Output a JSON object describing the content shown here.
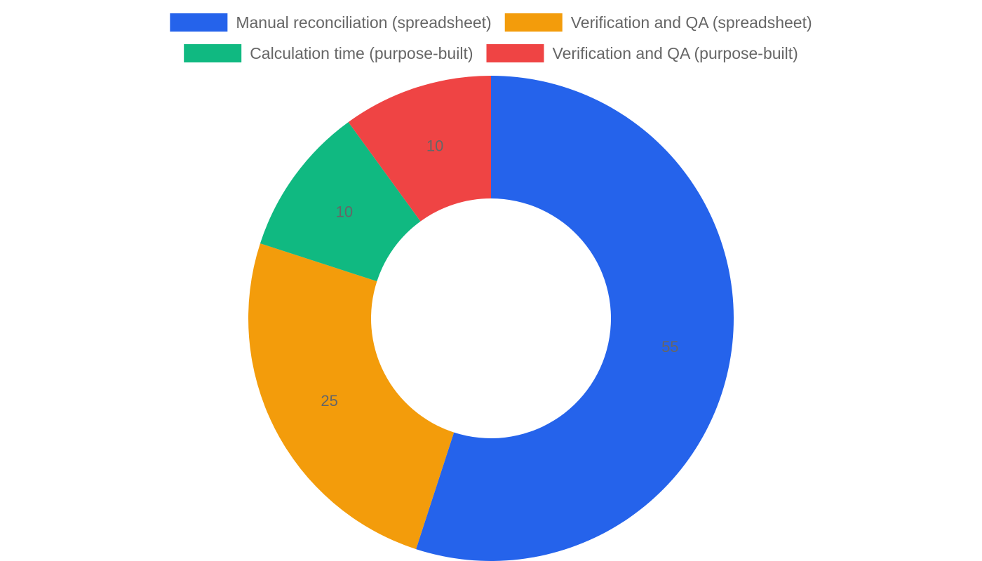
{
  "chart_data": {
    "type": "pie",
    "variant": "donut",
    "categories": [
      "Manual reconciliation (spreadsheet)",
      "Verification and QA (spreadsheet)",
      "Calculation time (purpose-built)",
      "Verification and QA (purpose-built)"
    ],
    "values": [
      55,
      25,
      10,
      10
    ],
    "value_labels": [
      "55",
      "25",
      "10",
      "10"
    ],
    "colors": [
      "#2563eb",
      "#f39c0b",
      "#10b981",
      "#ef4444"
    ],
    "legend_position": "top",
    "title": ""
  }
}
